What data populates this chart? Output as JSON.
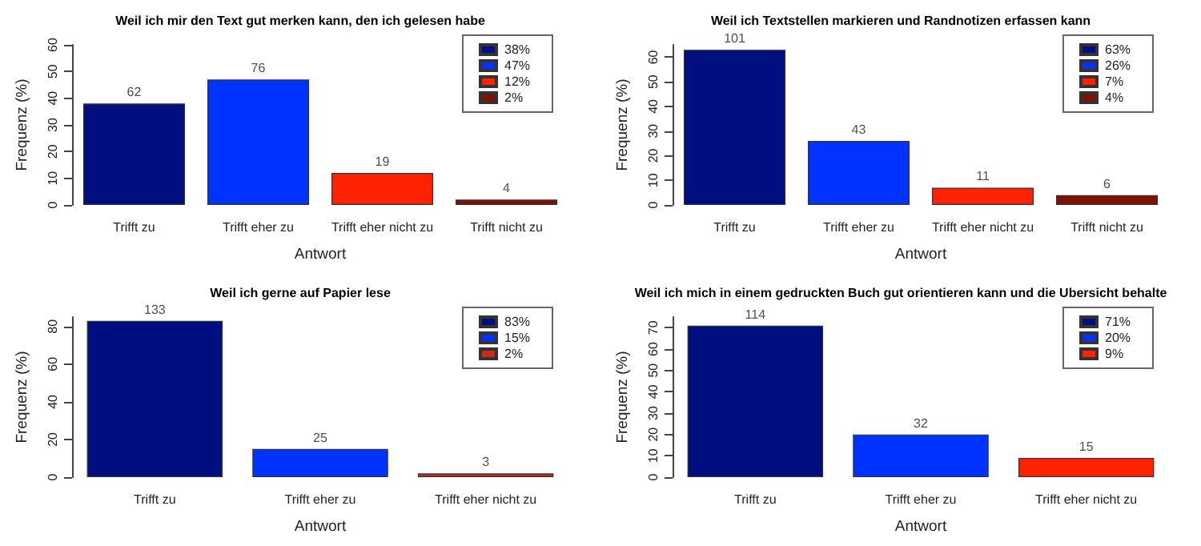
{
  "chart_data": [
    {
      "type": "bar",
      "title": "Weil ich mir den Text gut merken kann, den ich gelesen habe",
      "xlabel": "Antwort",
      "ylabel": "Frequenz (%)",
      "categories": [
        "Trifft zu",
        "Trifft eher zu",
        "Trifft eher nicht zu",
        "Trifft nicht zu"
      ],
      "ylim": [
        0,
        60
      ],
      "yticks": [
        0,
        10,
        20,
        30,
        40,
        50,
        60
      ],
      "legend": "top right",
      "series": [
        {
          "name": "38%",
          "color": "#000f80",
          "values": [
            38,
            null,
            null,
            null
          ]
        },
        {
          "name": "47%",
          "color": "#0033ff",
          "values": [
            null,
            47,
            null,
            null
          ]
        },
        {
          "name": "12%",
          "color": "#ff2200",
          "values": [
            null,
            null,
            12,
            null
          ]
        },
        {
          "name": "2%",
          "color": "#7f1100",
          "values": [
            null,
            null,
            null,
            2
          ]
        }
      ],
      "annotations": [
        {
          "text": "62",
          "x": "Trifft zu",
          "y": 38
        },
        {
          "text": "76",
          "x": "Trifft eher zu",
          "y": 47
        },
        {
          "text": "19",
          "x": "Trifft eher nicht zu",
          "y": 12
        },
        {
          "text": "4",
          "x": "Trifft nicht zu",
          "y": 2
        }
      ]
    },
    {
      "type": "bar",
      "title": "Weil ich Textstellen markieren und Randnotizen erfassen kann",
      "xlabel": "Antwort",
      "ylabel": "Frequenz (%)",
      "categories": [
        "Trifft zu",
        "Trifft eher zu",
        "Trifft eher nicht zu",
        "Trifft nicht zu"
      ],
      "ylim": [
        0,
        65
      ],
      "yticks": [
        0,
        10,
        20,
        30,
        40,
        50,
        60
      ],
      "legend": "top right",
      "series": [
        {
          "name": "63%",
          "color": "#000f80",
          "values": [
            63,
            null,
            null,
            null
          ]
        },
        {
          "name": "26%",
          "color": "#0033ff",
          "values": [
            null,
            26,
            null,
            null
          ]
        },
        {
          "name": "7%",
          "color": "#ff2200",
          "values": [
            null,
            null,
            7,
            null
          ]
        },
        {
          "name": "4%",
          "color": "#7f1100",
          "values": [
            null,
            null,
            null,
            4
          ]
        }
      ],
      "annotations": [
        {
          "text": "101",
          "x": "Trifft zu",
          "y": 63
        },
        {
          "text": "43",
          "x": "Trifft eher zu",
          "y": 26
        },
        {
          "text": "11",
          "x": "Trifft eher nicht zu",
          "y": 7
        },
        {
          "text": "6",
          "x": "Trifft nicht zu",
          "y": 4
        }
      ]
    },
    {
      "type": "bar",
      "title": "Weil ich gerne auf Papier lese",
      "xlabel": "Antwort",
      "ylabel": "Frequenz (%)",
      "categories": [
        "Trifft zu",
        "Trifft eher zu",
        "Trifft eher nicht zu"
      ],
      "ylim": [
        0,
        85
      ],
      "yticks": [
        0,
        20,
        40,
        60,
        80
      ],
      "legend": "top right",
      "series": [
        {
          "name": "83%",
          "color": "#000f80",
          "values": [
            83,
            null,
            null
          ]
        },
        {
          "name": "15%",
          "color": "#0033ff",
          "values": [
            null,
            15,
            null
          ]
        },
        {
          "name": "2%",
          "color": "#cc2a1a",
          "values": [
            null,
            null,
            2
          ]
        }
      ],
      "annotations": [
        {
          "text": "133",
          "x": "Trifft zu",
          "y": 83
        },
        {
          "text": "25",
          "x": "Trifft eher zu",
          "y": 15
        },
        {
          "text": "3",
          "x": "Trifft eher nicht zu",
          "y": 2
        }
      ]
    },
    {
      "type": "bar",
      "title": "Weil ich mich in einem gedruckten Buch gut orientieren kann und die Ubersicht behalte",
      "xlabel": "Antwort",
      "ylabel": "Frequenz (%)",
      "categories": [
        "Trifft zu",
        "Trifft eher zu",
        "Trifft eher nicht zu"
      ],
      "ylim": [
        0,
        75
      ],
      "yticks": [
        0,
        10,
        20,
        30,
        40,
        50,
        60,
        70
      ],
      "legend": "top right",
      "series": [
        {
          "name": "71%",
          "color": "#000f80",
          "values": [
            71,
            null,
            null
          ]
        },
        {
          "name": "20%",
          "color": "#0033ff",
          "values": [
            null,
            20,
            null
          ]
        },
        {
          "name": "9%",
          "color": "#ff2200",
          "values": [
            null,
            null,
            9
          ]
        }
      ],
      "annotations": [
        {
          "text": "114",
          "x": "Trifft zu",
          "y": 71
        },
        {
          "text": "32",
          "x": "Trifft eher zu",
          "y": 20
        },
        {
          "text": "15",
          "x": "Trifft eher nicht zu",
          "y": 9
        }
      ]
    }
  ]
}
